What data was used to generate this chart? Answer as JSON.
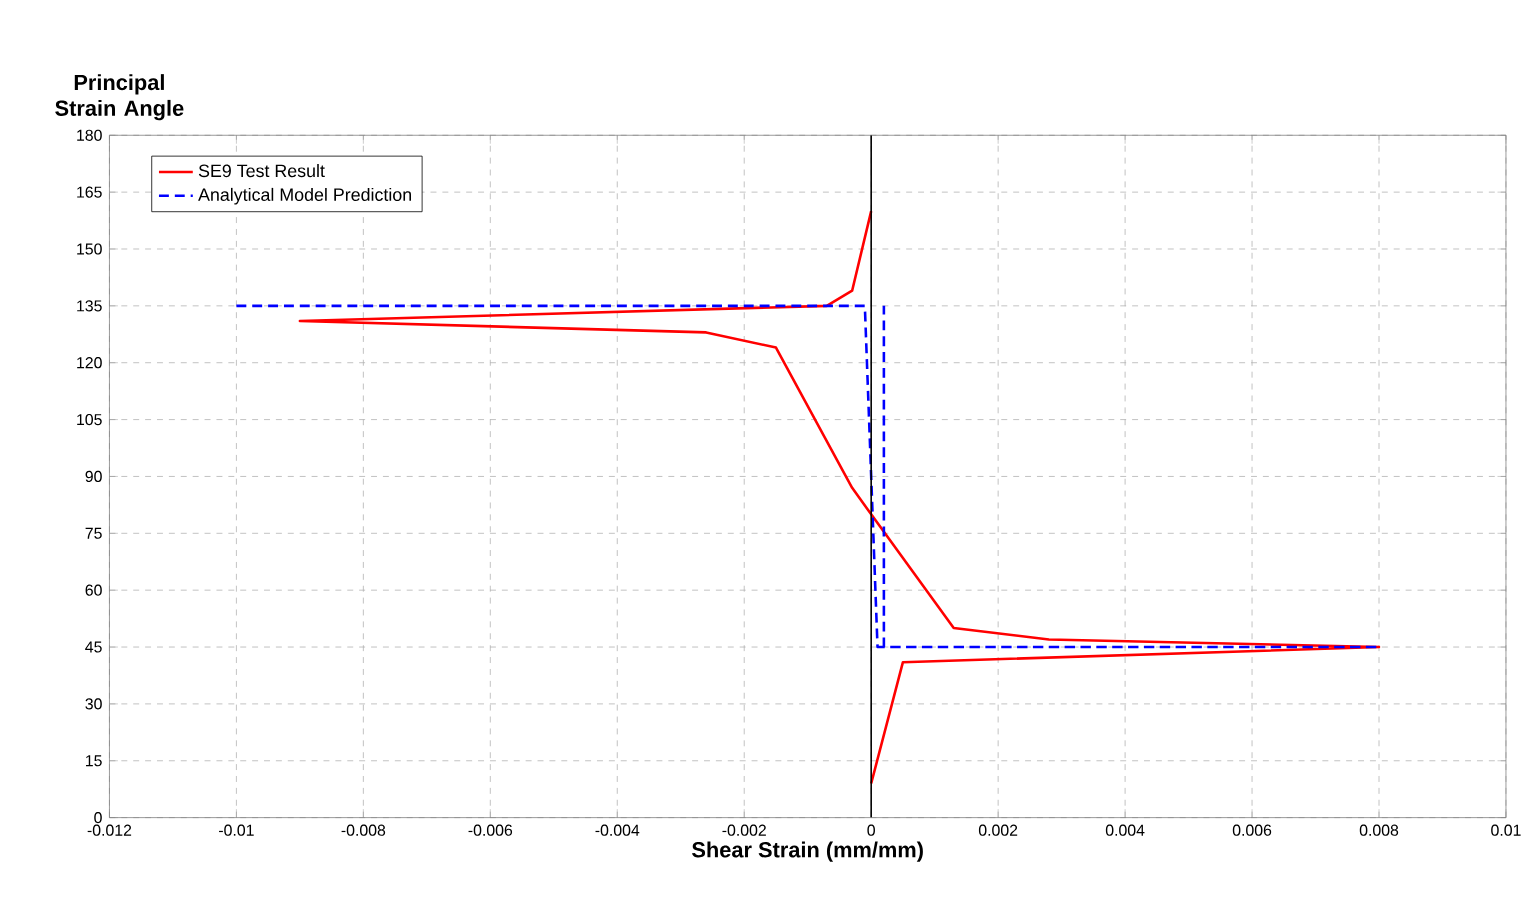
{
  "chart_data": {
    "type": "line",
    "xlabel": "Shear Strain (mm/mm)",
    "ylabel": "Principal Strain Angle",
    "xlim": [
      -0.012,
      0.01
    ],
    "xticks": [
      -0.012,
      -0.01,
      -0.008,
      -0.006,
      -0.004,
      -0.002,
      0,
      0.002,
      0.004,
      0.006,
      0.008,
      0.01
    ],
    "ylim": [
      0,
      180
    ],
    "yticks": [
      0,
      15,
      30,
      45,
      60,
      75,
      90,
      105,
      120,
      135,
      150,
      165,
      180
    ],
    "grid": true,
    "legend": "top left",
    "marker": "none",
    "series": [
      {
        "name": "SE9 Test Result",
        "color": "#ff0000",
        "line_style": "solid",
        "x": [
          0,
          -0.0003,
          -0.0007,
          -0.009,
          -0.0026,
          -0.0015,
          -0.0003,
          0,
          0.0013,
          0.0028,
          0.008,
          0.0005,
          0
        ],
        "values": [
          160,
          139,
          135,
          131,
          128,
          124,
          87,
          80,
          50,
          47,
          45,
          41,
          9
        ]
      },
      {
        "name": "Analytical Model Prediction",
        "color": "#0000ff",
        "line_style": "dashed",
        "x": [
          -0.01,
          -0.0001,
          0.0001,
          0.008,
          0.0002,
          0.0002
        ],
        "values": [
          135,
          135,
          45,
          45,
          45,
          135
        ]
      }
    ]
  }
}
